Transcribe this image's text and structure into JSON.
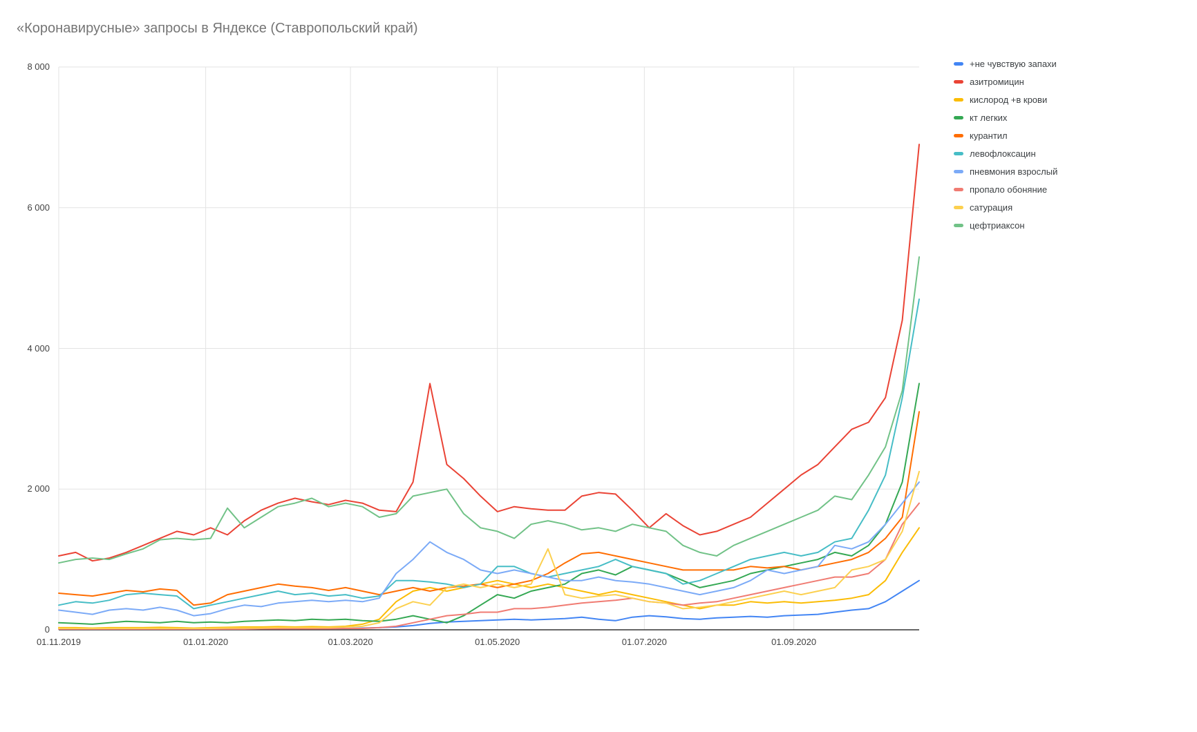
{
  "page": {
    "title": "«Коронавирусные» запросы в Яндексе (Ставропольский край)"
  },
  "chart_data": {
    "type": "line",
    "title": "«Коронавирусные» запросы в Яндексе (Ставропольский край)",
    "x_axis": {
      "tick_labels": [
        "01.11.2019",
        "01.01.2020",
        "01.03.2020",
        "01.05.2020",
        "01.07.2020",
        "01.09.2020"
      ],
      "tick_week_positions": [
        0,
        8.71,
        17.29,
        26.0,
        34.71,
        43.57
      ],
      "unit": "weekly points from 01.11.2019 to 25.10.2020"
    },
    "y_axis": {
      "ticks": [
        0,
        2000,
        4000,
        6000,
        8000
      ],
      "tick_labels": [
        "0",
        "2 000",
        "4 000",
        "6 000",
        "8 000"
      ],
      "ylim": [
        0,
        8000
      ]
    },
    "n_points": 52,
    "grid": true,
    "legend_position": "right",
    "colors": {
      "blue": "#4285F4",
      "red": "#EA4335",
      "yellow": "#FBBC04",
      "green": "#34A853",
      "orange": "#FF6D01",
      "teal": "#46BDC6",
      "light_blue": "#7BAAF7",
      "light_red": "#F07B72",
      "light_yellow": "#FCD04F",
      "light_green": "#71C287"
    },
    "series": [
      {
        "name": "+не чувствую запахи",
        "color": "#4285F4",
        "values": [
          10,
          10,
          10,
          10,
          10,
          10,
          15,
          15,
          10,
          10,
          15,
          15,
          20,
          20,
          20,
          20,
          20,
          20,
          25,
          30,
          40,
          60,
          90,
          110,
          120,
          130,
          140,
          150,
          140,
          150,
          160,
          180,
          150,
          130,
          180,
          200,
          185,
          160,
          150,
          170,
          180,
          190,
          180,
          200,
          210,
          220,
          250,
          280,
          300,
          400,
          550,
          700
        ]
      },
      {
        "name": "азитромицин",
        "color": "#EA4335",
        "values": [
          1050,
          1100,
          980,
          1020,
          1100,
          1200,
          1300,
          1400,
          1350,
          1450,
          1350,
          1550,
          1700,
          1800,
          1870,
          1820,
          1780,
          1840,
          1800,
          1700,
          1680,
          2100,
          3500,
          2350,
          2150,
          1900,
          1680,
          1750,
          1720,
          1700,
          1700,
          1900,
          1950,
          1930,
          1700,
          1450,
          1650,
          1480,
          1350,
          1400,
          1500,
          1600,
          1800,
          2000,
          2200,
          2350,
          2600,
          2850,
          2950,
          3300,
          4400,
          6900
        ]
      },
      {
        "name": "кислород +в крови",
        "color": "#FBBC04",
        "values": [
          30,
          30,
          25,
          30,
          30,
          30,
          35,
          30,
          25,
          30,
          35,
          40,
          40,
          45,
          40,
          45,
          40,
          50,
          80,
          150,
          400,
          550,
          600,
          550,
          600,
          650,
          700,
          650,
          600,
          650,
          600,
          550,
          500,
          550,
          500,
          450,
          400,
          350,
          300,
          350,
          350,
          400,
          380,
          400,
          380,
          400,
          420,
          450,
          500,
          700,
          1100,
          1450
        ]
      },
      {
        "name": "кт легких",
        "color": "#34A853",
        "values": [
          100,
          90,
          80,
          100,
          120,
          110,
          100,
          120,
          100,
          110,
          100,
          120,
          130,
          140,
          130,
          150,
          140,
          150,
          130,
          120,
          150,
          200,
          150,
          100,
          200,
          350,
          500,
          450,
          550,
          600,
          650,
          800,
          850,
          780,
          900,
          850,
          800,
          700,
          600,
          650,
          700,
          800,
          850,
          900,
          950,
          1000,
          1100,
          1050,
          1200,
          1500,
          2100,
          3500
        ]
      },
      {
        "name": "курантил",
        "color": "#FF6D01",
        "values": [
          520,
          500,
          480,
          520,
          560,
          540,
          580,
          560,
          350,
          380,
          500,
          550,
          600,
          650,
          620,
          600,
          560,
          600,
          550,
          500,
          550,
          600,
          550,
          600,
          620,
          650,
          600,
          650,
          700,
          800,
          950,
          1080,
          1100,
          1050,
          1000,
          950,
          900,
          850,
          850,
          850,
          850,
          900,
          880,
          900,
          850,
          900,
          950,
          1000,
          1100,
          1300,
          1600,
          3100
        ]
      },
      {
        "name": "левофлоксацин",
        "color": "#46BDC6",
        "values": [
          350,
          400,
          380,
          420,
          500,
          520,
          500,
          480,
          300,
          350,
          400,
          450,
          500,
          550,
          500,
          520,
          480,
          500,
          450,
          480,
          700,
          700,
          680,
          650,
          600,
          650,
          900,
          900,
          800,
          750,
          800,
          850,
          900,
          1000,
          900,
          850,
          800,
          650,
          700,
          800,
          900,
          1000,
          1050,
          1100,
          1050,
          1100,
          1250,
          1300,
          1700,
          2200,
          3300,
          4700
        ]
      },
      {
        "name": "пневмония взрослый",
        "color": "#7BAAF7",
        "values": [
          280,
          250,
          220,
          280,
          300,
          280,
          320,
          280,
          200,
          230,
          300,
          350,
          330,
          380,
          400,
          420,
          400,
          420,
          400,
          450,
          800,
          1000,
          1250,
          1100,
          1000,
          850,
          800,
          850,
          800,
          750,
          700,
          700,
          750,
          700,
          680,
          650,
          600,
          550,
          500,
          550,
          600,
          700,
          850,
          800,
          850,
          900,
          1200,
          1150,
          1250,
          1500,
          1800,
          2100
        ]
      },
      {
        "name": "пропало обоняние",
        "color": "#F07B72",
        "values": [
          10,
          10,
          10,
          10,
          10,
          10,
          10,
          10,
          10,
          10,
          10,
          10,
          15,
          15,
          15,
          15,
          15,
          20,
          20,
          30,
          50,
          100,
          150,
          200,
          220,
          250,
          250,
          300,
          300,
          320,
          350,
          380,
          400,
          420,
          450,
          400,
          380,
          350,
          380,
          400,
          450,
          500,
          550,
          600,
          650,
          700,
          750,
          750,
          800,
          1000,
          1500,
          1800
        ]
      },
      {
        "name": "сатурация",
        "color": "#FCD04F",
        "values": [
          20,
          20,
          20,
          20,
          20,
          20,
          20,
          20,
          20,
          20,
          25,
          25,
          25,
          30,
          30,
          30,
          30,
          40,
          50,
          100,
          300,
          400,
          350,
          600,
          650,
          600,
          650,
          600,
          650,
          1150,
          500,
          450,
          480,
          500,
          450,
          400,
          380,
          300,
          320,
          350,
          400,
          450,
          500,
          550,
          500,
          550,
          600,
          850,
          900,
          1000,
          1400,
          2250
        ]
      },
      {
        "name": "цефтриаксон",
        "color": "#71C287",
        "values": [
          950,
          1000,
          1020,
          1000,
          1080,
          1150,
          1280,
          1300,
          1280,
          1300,
          1730,
          1450,
          1600,
          1750,
          1800,
          1870,
          1750,
          1800,
          1750,
          1600,
          1650,
          1900,
          1950,
          2000,
          1650,
          1450,
          1400,
          1300,
          1500,
          1550,
          1500,
          1420,
          1450,
          1400,
          1500,
          1450,
          1400,
          1200,
          1100,
          1050,
          1200,
          1300,
          1400,
          1500,
          1600,
          1700,
          1900,
          1850,
          2200,
          2600,
          3400,
          5300
        ]
      }
    ]
  }
}
